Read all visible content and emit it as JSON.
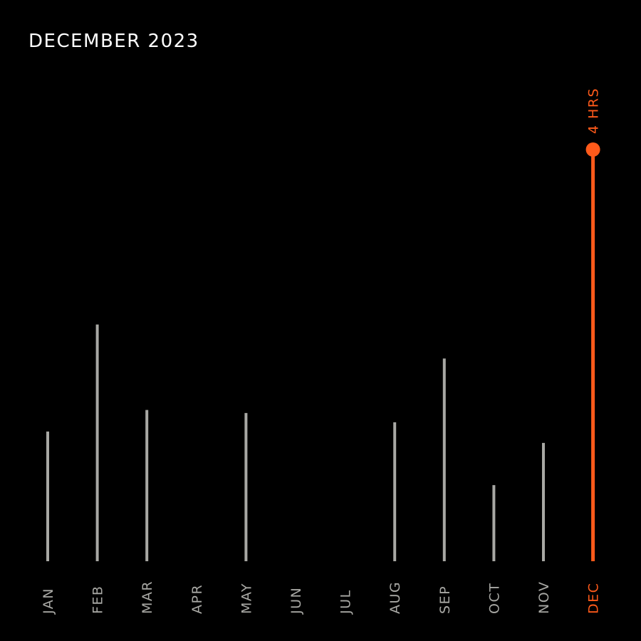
{
  "title": "DECEMBER 2023",
  "colors": {
    "background": "#000000",
    "bar": "#a8a8a4",
    "highlight": "#ff5a1a",
    "title": "#ffffff"
  },
  "chart_data": {
    "type": "bar",
    "title": "DECEMBER 2023",
    "xlabel": "",
    "ylabel": "",
    "grid": false,
    "legend": "none",
    "unit": "HRS",
    "ylim": [
      0,
      4.6
    ],
    "categories": [
      "JAN",
      "FEB",
      "MAR",
      "APR",
      "MAY",
      "JUN",
      "JUL",
      "AUG",
      "SEP",
      "OCT",
      "NOV",
      "DEC"
    ],
    "values": [
      1.26,
      2.3,
      1.47,
      0,
      1.44,
      0,
      0,
      1.35,
      1.97,
      0.74,
      1.15,
      4
    ],
    "highlight": {
      "category": "DEC",
      "value": 4,
      "label": "4 HRS"
    }
  }
}
